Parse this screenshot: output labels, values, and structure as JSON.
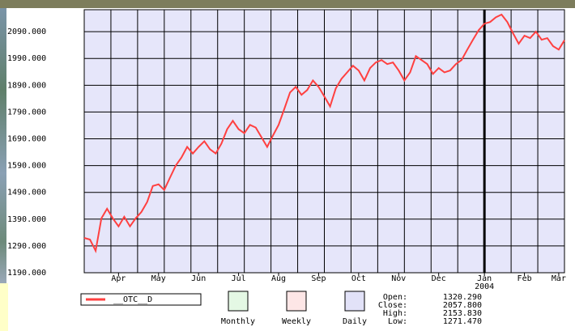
{
  "chart_data": {
    "type": "line",
    "categories": [
      null,
      null,
      null,
      null,
      null,
      null,
      "Apr",
      null,
      null,
      null,
      null,
      null,
      null,
      "May",
      null,
      null,
      null,
      null,
      null,
      null,
      "Jun",
      null,
      null,
      null,
      null,
      null,
      null,
      "Jul",
      null,
      null,
      null,
      null,
      null,
      null,
      "Aug",
      null,
      null,
      null,
      null,
      null,
      null,
      "Sep",
      null,
      null,
      null,
      null,
      null,
      null,
      "Oct",
      null,
      null,
      null,
      null,
      null,
      null,
      "Nov",
      null,
      null,
      null,
      null,
      null,
      null,
      "Dec",
      null,
      null,
      null,
      null,
      null,
      null,
      null,
      "Jan 2004",
      null,
      null,
      null,
      null,
      null,
      null,
      "Feb",
      null,
      null,
      null,
      null,
      null,
      "Mar",
      null
    ],
    "series": [
      {
        "name": "__OTC__D",
        "color": "#ff4040",
        "values": [
          1320,
          1314,
          1272,
          1393,
          1429,
          1393,
          1363,
          1399,
          1363,
          1393,
          1417,
          1454,
          1514,
          1520,
          1499,
          1545,
          1590,
          1620,
          1660,
          1635,
          1660,
          1681,
          1651,
          1635,
          1672,
          1726,
          1757,
          1726,
          1711,
          1742,
          1732,
          1696,
          1660,
          1702,
          1742,
          1802,
          1863,
          1884,
          1854,
          1872,
          1908,
          1884,
          1848,
          1811,
          1878,
          1914,
          1938,
          1963,
          1945,
          1908,
          1954,
          1975,
          1984,
          1969,
          1975,
          1945,
          1908,
          1938,
          1999,
          1984,
          1969,
          1932,
          1954,
          1938,
          1945,
          1969,
          1984,
          2023,
          2060,
          2096,
          2120,
          2126,
          2144,
          2154,
          2126,
          2084,
          2045,
          2075,
          2066,
          2090,
          2060,
          2066,
          2036,
          2023,
          2058
        ]
      }
    ],
    "ylim": [
      1190,
      2172
    ],
    "yticks": [
      {
        "value": 1190,
        "label": "1190.000"
      },
      {
        "value": 1290,
        "label": "1290.000"
      },
      {
        "value": 1390,
        "label": "1390.000"
      },
      {
        "value": 1490,
        "label": "1490.000"
      },
      {
        "value": 1590,
        "label": "1590.000"
      },
      {
        "value": 1690,
        "label": "1690.000"
      },
      {
        "value": 1790,
        "label": "1790.000"
      },
      {
        "value": 1890,
        "label": "1890.000"
      },
      {
        "value": 1990,
        "label": "1990.000"
      },
      {
        "value": 2090,
        "label": "2090.000"
      }
    ],
    "grid": true,
    "background": "#e6e6fa"
  },
  "buttons": [
    {
      "label": "Monthly",
      "color": "#e4f8e4"
    },
    {
      "label": "Weekly",
      "color": "#fde6e6"
    },
    {
      "label": "Daily",
      "color": "#e2e2f8"
    }
  ],
  "summary": [
    {
      "label": "Open:",
      "value": "1320.290"
    },
    {
      "label": "Close:",
      "value": "2057.800"
    },
    {
      "label": "High:",
      "value": "2153.830"
    },
    {
      "label": "Low:",
      "value": "1271.470"
    }
  ]
}
